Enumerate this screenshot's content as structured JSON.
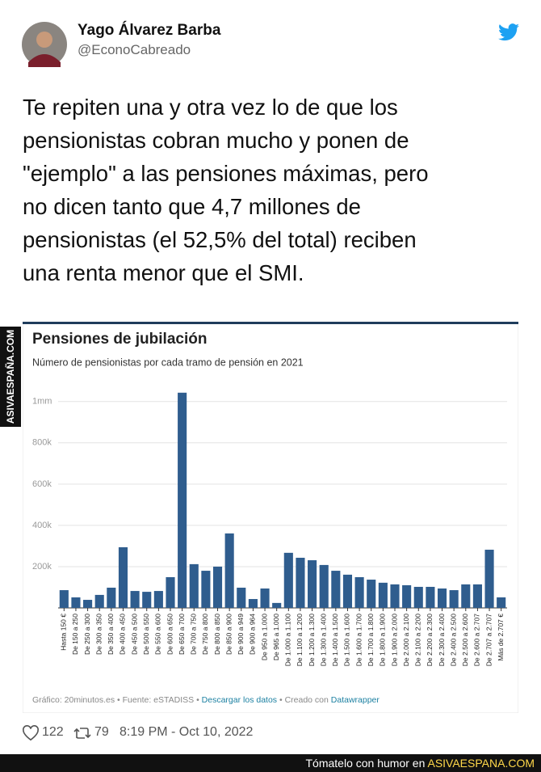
{
  "tweet": {
    "name": "Yago Álvarez Barba",
    "handle": "@EconoCabreado",
    "text_lines": [
      "Te repiten una y otra vez lo de que los",
      "pensionistas cobran mucho y ponen de",
      "\"ejemplo\" a las pensiones máximas, pero",
      "no dicen tanto que 4,7 millones de",
      "pensionistas (el 52,5% del total) reciben",
      "una renta menor que el SMI."
    ],
    "likes": "122",
    "retweets": "79",
    "timestamp": "8:19 PM - Oct 10, 2022"
  },
  "watermark": "ASIVAESPAÑA.COM",
  "footer_bar": {
    "text": "Tómatelo con humor en",
    "site": "ASIVAESPANA.COM"
  },
  "chart_data": {
    "type": "bar",
    "title": "Pensiones de jubilación",
    "subtitle": "Número de pensionistas por cada tramo de pensión en 2021",
    "categories": [
      "Hasta 150 €",
      "De 150 a 250",
      "De 250 a 300",
      "De 300 a 350",
      "De 350 a 400",
      "De 400 a 450",
      "De 450 a 500",
      "De 500 a 550",
      "De 550 a 600",
      "De 600 a 650",
      "De 650 a 700",
      "De 700 a 750",
      "De 750 a 800",
      "De 800 a 850",
      "De 850 a 900",
      "De 900 a 949",
      "De 900 a 964",
      "De 950 a 1.000",
      "De 965 a 1.000",
      "De 1.000 a 1.100",
      "De 1.100 a 1.200",
      "De 1.200 a 1.300",
      "De 1.300 a 1.400",
      "De 1.400 a 1.500",
      "De 1.500 a 1.600",
      "De 1.600 a 1.700",
      "De 1.700 a 1.800",
      "De 1.800 a 1.900",
      "De 1.900 a 2.000",
      "De 2.000 a 2.100",
      "De 2.100 a 2.200",
      "De 2.200 a 2.300",
      "De 2.300 a 2.400",
      "De 2.400 a 2.500",
      "De 2.500 a 2.600",
      "De 2.600 a 2.707",
      "De 2.707 a 2.707",
      "Más de 2.707 €"
    ],
    "values": [
      86000,
      51000,
      39000,
      63000,
      98000,
      294000,
      82000,
      78000,
      82000,
      149000,
      1043000,
      212000,
      180000,
      200000,
      361000,
      98000,
      43000,
      94000,
      24000,
      267000,
      243000,
      231000,
      208000,
      180000,
      161000,
      149000,
      137000,
      122000,
      114000,
      110000,
      102000,
      102000,
      94000,
      86000,
      114000,
      114000,
      282000,
      51000
    ],
    "color": "#2f5d8e",
    "ylim": [
      0,
      1050000
    ],
    "yticks": [
      {
        "value": 200000,
        "label": "200k"
      },
      {
        "value": 400000,
        "label": "400k"
      },
      {
        "value": 600000,
        "label": "600k"
      },
      {
        "value": 800000,
        "label": "800k"
      },
      {
        "value": 1000000,
        "label": "1mm"
      }
    ],
    "grid": true,
    "source": [
      "Gráfico: 20minutos.es • Fuente: eSTADISS • ",
      "Descargar los datos",
      " • Creado con ",
      "Datawrapper"
    ]
  }
}
